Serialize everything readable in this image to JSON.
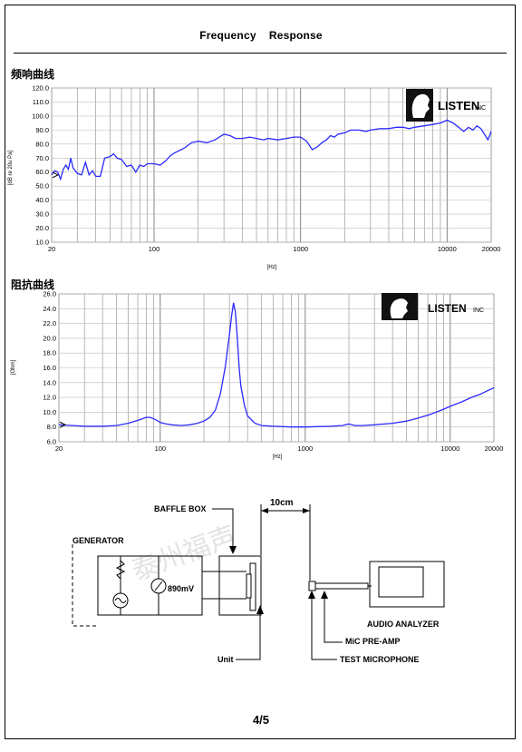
{
  "header": {
    "title": "Frequency    Response"
  },
  "freq_section": {
    "label": "频响曲线"
  },
  "imp_section": {
    "label": "阻抗曲线"
  },
  "logo": {
    "text": "LISTEN",
    "suffix": "INC"
  },
  "footer": {
    "page": "4/5"
  },
  "diagram": {
    "generator": "GENERATOR",
    "voltage": "890mV",
    "baffle_box": "BAFFLE BOX",
    "distance": "10cm",
    "unit": "Unit",
    "audio_analyzer": "AUDIO ANALYZER",
    "mic_preamp": "MiC PRE-AMP",
    "test_microphone": "TEST MICROPHONE",
    "watermark": "泰州福声"
  },
  "chart_data": [
    {
      "type": "line",
      "title": "",
      "xlabel": "[Hz]",
      "ylabel": "[dB re 20u Pa]",
      "x_scale": "log",
      "xlim": [
        20,
        20000
      ],
      "ylim": [
        10,
        120
      ],
      "x_ticks": [
        "20",
        "100",
        "1000",
        "10000",
        "20000"
      ],
      "y_ticks": [
        "10.0",
        "20.0",
        "30.0",
        "40.0",
        "50.0",
        "60.0",
        "70.0",
        "80.0",
        "90.0",
        "100.0",
        "110.0",
        "120.0"
      ],
      "grid": true,
      "series": [
        {
          "color": "#2a2aff",
          "x": [
            20,
            21,
            22,
            23,
            24,
            25,
            26,
            27,
            28,
            30,
            32,
            34,
            36,
            38,
            40,
            43,
            46,
            50,
            53,
            56,
            60,
            65,
            70,
            75,
            80,
            85,
            90,
            100,
            110,
            120,
            130,
            140,
            160,
            180,
            200,
            230,
            260,
            300,
            330,
            360,
            400,
            450,
            500,
            560,
            600,
            700,
            800,
            900,
            1000,
            1100,
            1200,
            1300,
            1400,
            1500,
            1600,
            1700,
            1800,
            2000,
            2200,
            2500,
            2800,
            3000,
            3500,
            4000,
            4500,
            5000,
            5500,
            6000,
            7000,
            8000,
            9000,
            10000,
            11000,
            12000,
            13000,
            14000,
            15000,
            16000,
            17000,
            18000,
            19000,
            20000
          ],
          "y": [
            58,
            61,
            60,
            55,
            62,
            65,
            62,
            70,
            63,
            59,
            58,
            67,
            58,
            61,
            57,
            57,
            70,
            71,
            73,
            70,
            69,
            64,
            65,
            60,
            65,
            64,
            66,
            66,
            65,
            68,
            72,
            74,
            77,
            81,
            82,
            81,
            83,
            87,
            86,
            84,
            84,
            85,
            84,
            83,
            84,
            83,
            84,
            85,
            85,
            82,
            76,
            78,
            81,
            83,
            86,
            85,
            87,
            88,
            90,
            90,
            89,
            90,
            91,
            91,
            92,
            92,
            91,
            92,
            93,
            94,
            95,
            97,
            95,
            92,
            89,
            92,
            90,
            93,
            91,
            87,
            83,
            89
          ]
        }
      ]
    },
    {
      "type": "line",
      "title": "",
      "xlabel": "[Hz]",
      "ylabel": "[Ohm]",
      "x_scale": "log",
      "xlim": [
        20,
        20000
      ],
      "ylim": [
        6,
        26
      ],
      "x_ticks": [
        "20",
        "100",
        "1000",
        "10000",
        "20000"
      ],
      "y_ticks": [
        "6.0",
        "8.0",
        "10.0",
        "12.0",
        "14.0",
        "16.0",
        "18.0",
        "20.0",
        "22.0",
        "24.0",
        "26.0"
      ],
      "grid": true,
      "series": [
        {
          "color": "#2a2aff",
          "x": [
            20,
            25,
            30,
            40,
            50,
            60,
            70,
            80,
            85,
            90,
            95,
            100,
            110,
            120,
            140,
            160,
            180,
            200,
            220,
            240,
            260,
            280,
            300,
            310,
            320,
            330,
            340,
            350,
            360,
            380,
            400,
            450,
            500,
            600,
            800,
            1000,
            1500,
            1800,
            2000,
            2200,
            2500,
            3000,
            4000,
            5000,
            6000,
            7000,
            8000,
            9000,
            10000,
            12000,
            14000,
            16000,
            18000,
            20000
          ],
          "y": [
            8.3,
            8.2,
            8.1,
            8.1,
            8.2,
            8.5,
            8.9,
            9.3,
            9.3,
            9.1,
            8.9,
            8.6,
            8.4,
            8.3,
            8.2,
            8.3,
            8.5,
            8.8,
            9.3,
            10.3,
            12.5,
            16,
            20.5,
            23,
            24.8,
            23.5,
            20,
            16,
            13.5,
            11,
            9.5,
            8.5,
            8.2,
            8.1,
            8.0,
            8.0,
            8.1,
            8.2,
            8.4,
            8.2,
            8.2,
            8.3,
            8.5,
            8.8,
            9.2,
            9.6,
            10.0,
            10.4,
            10.8,
            11.4,
            12.0,
            12.4,
            12.9,
            13.3
          ]
        }
      ]
    }
  ]
}
